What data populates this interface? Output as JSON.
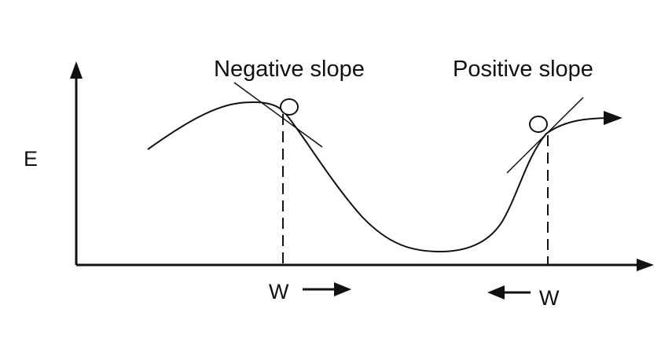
{
  "axes": {
    "y_label": "E"
  },
  "annotations": {
    "left_tangent_label": "Negative slope",
    "right_tangent_label": "Positive slope",
    "left_weight_label": "W",
    "right_weight_label": "W"
  },
  "colors": {
    "ink": "#111111",
    "background": "#ffffff"
  },
  "icons": [
    "arrow-right-icon",
    "arrow-left-icon",
    "ball-icon"
  ]
}
